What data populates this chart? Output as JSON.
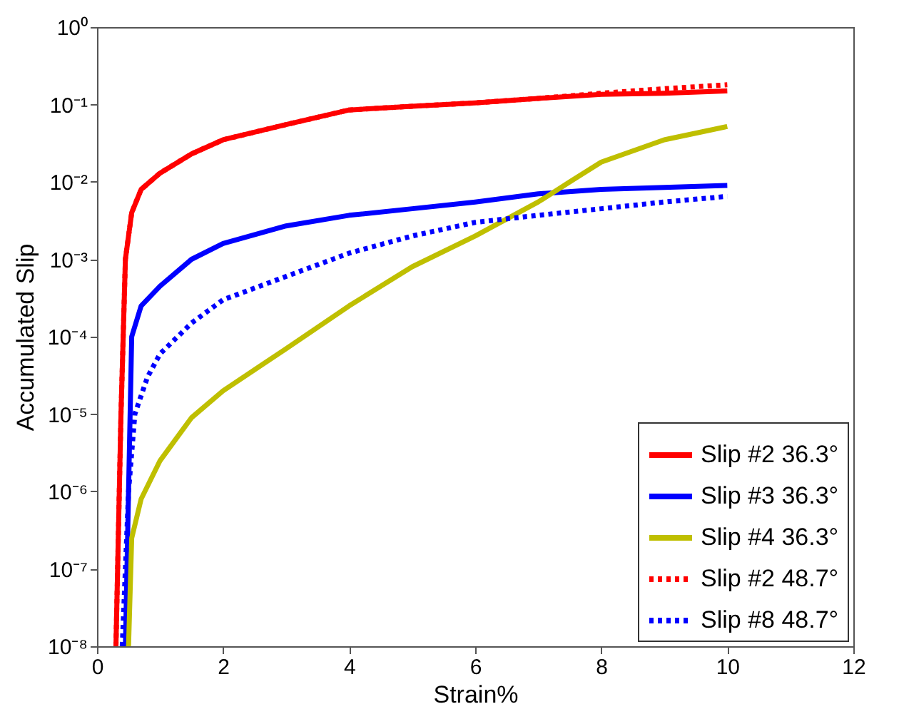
{
  "chart_data": {
    "type": "line",
    "xlabel": "Strain%",
    "ylabel": "Accumulated Slip",
    "log": "y",
    "xlim": [
      0,
      12
    ],
    "xticks": [
      0,
      2,
      4,
      6,
      8,
      10,
      12
    ],
    "ylim": [
      1e-08,
      1
    ],
    "yticks": [
      {
        "value": 1e-08,
        "label": "10⁻⁸"
      },
      {
        "value": 1e-07,
        "label": "10⁻⁷"
      },
      {
        "value": 1e-06,
        "label": "10⁻⁶"
      },
      {
        "value": 1e-05,
        "label": "10⁻⁵"
      },
      {
        "value": 0.0001,
        "label": "10⁻⁴"
      },
      {
        "value": 0.001,
        "label": "10⁻³"
      },
      {
        "value": 0.01,
        "label": "10⁻²"
      },
      {
        "value": 0.1,
        "label": "10⁻¹"
      },
      {
        "value": 1,
        "label": "10⁰"
      }
    ],
    "grid": false,
    "legend": "bottom right",
    "series": [
      {
        "name": "Slip #2 36.3°",
        "color": "#ff0000",
        "line_style": "solid",
        "x": [
          0.3,
          0.38,
          0.45,
          0.55,
          0.7,
          1,
          1.5,
          2,
          3,
          4,
          5,
          6,
          7,
          8,
          9,
          10
        ],
        "values": [
          1e-08,
          1e-05,
          0.001,
          0.004,
          0.008,
          0.013,
          0.023,
          0.035,
          0.055,
          0.085,
          0.095,
          0.105,
          0.12,
          0.135,
          0.14,
          0.15
        ]
      },
      {
        "name": "Slip #3 36.3°",
        "color": "#0000ff",
        "line_style": "solid",
        "x": [
          0.45,
          0.5,
          0.55,
          0.7,
          1,
          1.5,
          2,
          3,
          4,
          5,
          6,
          7,
          8,
          9,
          10
        ],
        "values": [
          1e-08,
          1e-06,
          0.0001,
          0.00025,
          0.00045,
          0.001,
          0.0016,
          0.0027,
          0.0037,
          0.0045,
          0.0055,
          0.007,
          0.008,
          0.0085,
          0.009
        ]
      },
      {
        "name": "Slip #4 36.3°",
        "color": "#bfbf00",
        "line_style": "solid",
        "x": [
          0.5,
          0.55,
          0.7,
          1,
          1.5,
          2,
          3,
          4,
          5,
          6,
          7,
          7.5,
          8,
          9,
          10
        ],
        "values": [
          1e-08,
          2.5e-07,
          8e-07,
          2.5e-06,
          9e-06,
          2e-05,
          7e-05,
          0.00025,
          0.0008,
          0.002,
          0.0055,
          0.01,
          0.018,
          0.035,
          0.052
        ]
      },
      {
        "name": "Slip #2 48.7°",
        "color": "#ff0000",
        "line_style": "dotted",
        "x": [
          0.3,
          0.38,
          0.45,
          0.55,
          0.7,
          1,
          1.5,
          2,
          3,
          4,
          5,
          6,
          7,
          8,
          9,
          10
        ],
        "values": [
          1e-08,
          1e-05,
          0.001,
          0.004,
          0.008,
          0.013,
          0.023,
          0.035,
          0.055,
          0.085,
          0.095,
          0.105,
          0.12,
          0.14,
          0.16,
          0.18
        ]
      },
      {
        "name": "Slip #8 48.7°",
        "color": "#0000ff",
        "line_style": "dotted",
        "x": [
          0.4,
          0.5,
          0.6,
          0.8,
          1,
          1.5,
          2,
          3,
          4,
          5,
          6,
          7,
          8,
          9,
          10
        ],
        "values": [
          1e-08,
          1e-06,
          1e-05,
          3e-05,
          6e-05,
          0.00015,
          0.0003,
          0.0006,
          0.0012,
          0.002,
          0.003,
          0.0037,
          0.0045,
          0.0055,
          0.0065
        ]
      }
    ]
  }
}
